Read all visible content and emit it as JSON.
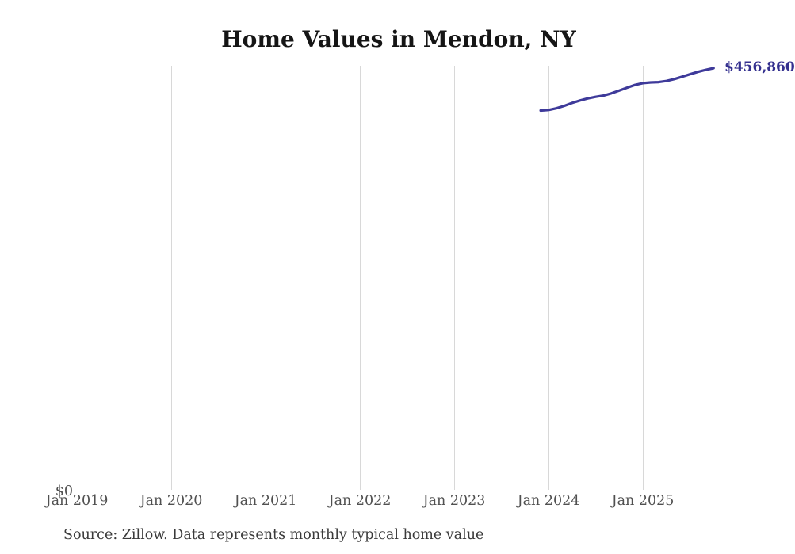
{
  "page": {
    "background": "#ffffff"
  },
  "chart_data": {
    "type": "line",
    "title": "Home Values in Mendon, NY",
    "x_axis": {
      "ticks": [
        "Jan 2019",
        "Jan 2020",
        "Jan 2021",
        "Jan 2022",
        "Jan 2023",
        "Jan 2024",
        "Jan 2025"
      ],
      "gridlines_shown_for": [
        "Jan 2020",
        "Jan 2021",
        "Jan 2022",
        "Jan 2023",
        "Jan 2024",
        "Jan 2025"
      ]
    },
    "y_axis": {
      "zero_label": "$0",
      "ylim": [
        0,
        460000
      ],
      "horizontal_gridlines": false
    },
    "legend": "none",
    "gridline_color": "#d8d8d8",
    "series": [
      {
        "name": "Typical home value",
        "color": "#3e3a9a",
        "months": [
          "2023-12",
          "2024-01",
          "2024-02",
          "2024-03",
          "2024-04",
          "2024-05",
          "2024-06",
          "2024-07",
          "2024-08",
          "2024-09",
          "2024-10",
          "2024-11",
          "2024-12",
          "2025-01",
          "2025-02",
          "2025-03",
          "2025-04",
          "2025-05",
          "2025-06",
          "2025-07",
          "2025-08",
          "2025-09",
          "2025-10"
        ],
        "values": [
          411000,
          411600,
          413400,
          416100,
          419200,
          421900,
          424100,
          425800,
          427200,
          429600,
          432600,
          435800,
          438700,
          440700,
          441400,
          441800,
          443000,
          445000,
          447600,
          450300,
          452800,
          455000,
          456860
        ]
      }
    ],
    "end_label": "$456,860",
    "end_label_color": "#34308f",
    "source_note": "Source: Zillow. Data represents monthly typical home value"
  }
}
